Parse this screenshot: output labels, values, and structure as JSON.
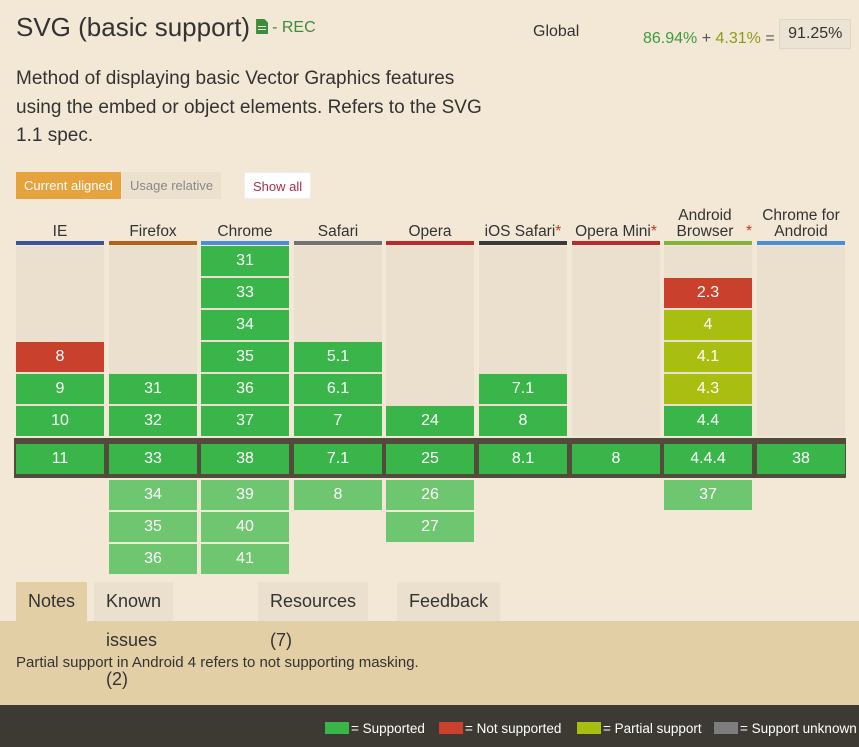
{
  "header": {
    "title": "SVG (basic support)",
    "doc_icon": "document-icon",
    "status": "- REC",
    "global_label": "Global",
    "supported_pct": "86.94%",
    "plus": "+",
    "partial_pct": "4.31%",
    "equals": "=",
    "total_pct": "91.25%"
  },
  "description": "Method of displaying basic Vector Graphics features using the embed or object elements. Refers to the SVG 1.1 spec.",
  "view_buttons": {
    "current_aligned": "Current aligned",
    "usage_relative": "Usage relative",
    "show_all": "Show all"
  },
  "browsers": [
    {
      "name": "IE",
      "star": "",
      "bar_color": "#3a539b",
      "past": [
        {
          "v": "8",
          "s": "n"
        },
        {
          "v": "9",
          "s": "y"
        },
        {
          "v": "10",
          "s": "y"
        }
      ],
      "current": {
        "v": "11",
        "s": "y"
      },
      "future": []
    },
    {
      "name": "Firefox",
      "star": "",
      "bar_color": "#b2621c",
      "past": [
        {
          "v": "31",
          "s": "y"
        },
        {
          "v": "32",
          "s": "y"
        }
      ],
      "current": {
        "v": "33",
        "s": "y"
      },
      "future": [
        {
          "v": "34",
          "s": "f"
        },
        {
          "v": "35",
          "s": "f"
        },
        {
          "v": "36",
          "s": "f"
        }
      ]
    },
    {
      "name": "Chrome",
      "star": "",
      "bar_color": "#4a8fd6",
      "past": [
        {
          "v": "31",
          "s": "y"
        },
        {
          "v": "33",
          "s": "y"
        },
        {
          "v": "34",
          "s": "y"
        },
        {
          "v": "35",
          "s": "y"
        },
        {
          "v": "36",
          "s": "y"
        },
        {
          "v": "37",
          "s": "y"
        }
      ],
      "current": {
        "v": "38",
        "s": "y"
      },
      "future": [
        {
          "v": "39",
          "s": "f"
        },
        {
          "v": "40",
          "s": "f"
        },
        {
          "v": "41",
          "s": "f"
        }
      ]
    },
    {
      "name": "Safari",
      "star": "",
      "bar_color": "#727272",
      "past": [
        {
          "v": "5.1",
          "s": "y"
        },
        {
          "v": "6.1",
          "s": "y"
        },
        {
          "v": "7",
          "s": "y"
        }
      ],
      "current": {
        "v": "7.1",
        "s": "y"
      },
      "future": [
        {
          "v": "8",
          "s": "f"
        }
      ]
    },
    {
      "name": "Opera",
      "star": "",
      "bar_color": "#b72c2c",
      "past": [
        {
          "v": "24",
          "s": "y"
        }
      ],
      "current": {
        "v": "25",
        "s": "y"
      },
      "future": [
        {
          "v": "26",
          "s": "f"
        },
        {
          "v": "27",
          "s": "f"
        }
      ]
    },
    {
      "name": "iOS Safari",
      "star": "*",
      "bar_color": "#3a3a3a",
      "past": [
        {
          "v": "7.1",
          "s": "y"
        },
        {
          "v": "8",
          "s": "y"
        }
      ],
      "current": {
        "v": "8.1",
        "s": "y"
      },
      "future": []
    },
    {
      "name": "Opera Mini",
      "star": "*",
      "bar_color": "#b72c2c",
      "past": [],
      "current": {
        "v": "8",
        "s": "y"
      },
      "future": []
    },
    {
      "name": "Android Browser",
      "star": "*",
      "bar_color": "#86b33b",
      "past": [
        {
          "v": "2.3",
          "s": "n"
        },
        {
          "v": "4",
          "s": "a"
        },
        {
          "v": "4.1",
          "s": "a"
        },
        {
          "v": "4.3",
          "s": "a"
        },
        {
          "v": "4.4",
          "s": "y"
        }
      ],
      "current": {
        "v": "4.4.4",
        "s": "y"
      },
      "future": [
        {
          "v": "37",
          "s": "f"
        }
      ]
    },
    {
      "name": "Chrome for Android",
      "star": "",
      "bar_color": "#4a8fd6",
      "past": [],
      "current": {
        "v": "38",
        "s": "y"
      },
      "future": []
    }
  ],
  "tabs": [
    {
      "label": "Notes",
      "active": true
    },
    {
      "label": "Known issues (2)",
      "active": false
    },
    {
      "label": "Resources (7)",
      "active": false
    },
    {
      "label": "Feedback",
      "active": false
    }
  ],
  "note_text": "Partial support in Android 4 refers to not supporting masking.",
  "legend": [
    {
      "label": "= Supported",
      "color": "#39b54a"
    },
    {
      "label": "= Not supported",
      "color": "#c9412d"
    },
    {
      "label": "= Partial support",
      "color": "#a8bf12"
    },
    {
      "label": "= Support unknown",
      "color": "#7d7d7d"
    }
  ]
}
